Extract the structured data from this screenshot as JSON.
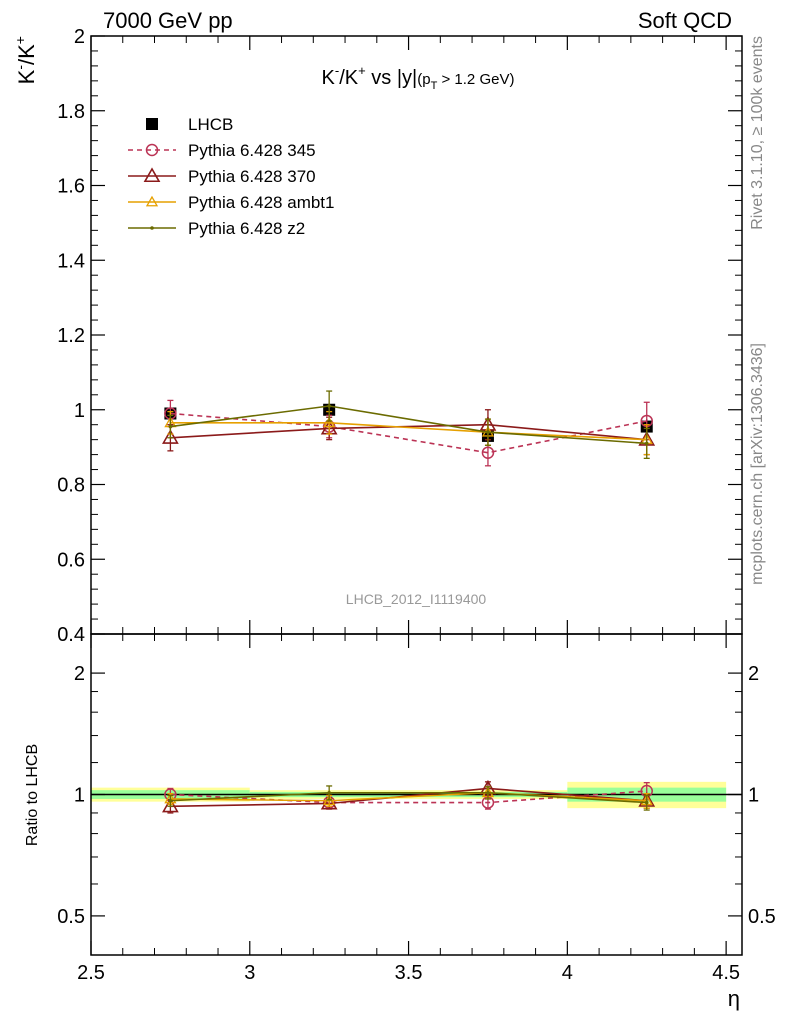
{
  "header": {
    "left": "7000 GeV pp",
    "right": "Soft QCD"
  },
  "side_labels": {
    "rivet": "Rivet 3.1.10, ≥ 100k events",
    "mcplots": "mcplots.cern.ch [arXiv:1306.3436]"
  },
  "watermark": "LHCB_2012_I1119400",
  "colors": {
    "lhcb": "#000000",
    "p345": "#bb3355",
    "p370": "#8b1a1a",
    "ambt1": "#e6a000",
    "z2": "#6b6b00",
    "band_yellow": "#ffff99",
    "band_green": "#99ff99"
  },
  "chart_data": [
    {
      "type": "line",
      "title_parts": {
        "k1": "K",
        "sup1": "-",
        "slash": "/K",
        "sup2": "+",
        "vs": " vs |y|",
        "sub_open": "(p",
        "sub_t": "T",
        "sub_rest": " > 1.2 GeV)"
      },
      "ylabel_parts": {
        "k1": "K",
        "sup1": "-",
        "slash": "/K",
        "sup2": "+"
      },
      "xlim": [
        2.5,
        4.55
      ],
      "ylim": [
        0.4,
        2.0
      ],
      "yticks": [
        0.4,
        0.6,
        0.8,
        1.0,
        1.2,
        1.4,
        1.6,
        1.8,
        2.0
      ],
      "ytick_labels": [
        "0.4",
        "0.6",
        "0.8",
        "1",
        "1.2",
        "1.4",
        "1.6",
        "1.8",
        "2"
      ],
      "x": [
        2.75,
        3.25,
        3.75,
        4.25
      ],
      "x_bins": [
        [
          2.5,
          3.0
        ],
        [
          3.0,
          3.5
        ],
        [
          3.5,
          4.0
        ],
        [
          4.0,
          4.5
        ]
      ],
      "series": [
        {
          "key": "lhcb",
          "name": "LHCB",
          "values": [
            0.99,
            1.0,
            0.93,
            0.955
          ],
          "errors": [
            0.01,
            0.01,
            0.01,
            0.02
          ]
        },
        {
          "key": "p345",
          "name": "Pythia 6.428 345",
          "values": [
            0.99,
            0.955,
            0.885,
            0.97
          ],
          "errors": [
            0.035,
            0.03,
            0.035,
            0.05
          ]
        },
        {
          "key": "p370",
          "name": "Pythia 6.428 370",
          "values": [
            0.925,
            0.95,
            0.96,
            0.92
          ],
          "errors": [
            0.035,
            0.03,
            0.04,
            0.04
          ]
        },
        {
          "key": "ambt1",
          "name": "Pythia 6.428 ambt1",
          "values": [
            0.965,
            0.965,
            0.94,
            0.92
          ],
          "errors": [
            0.03,
            0.03,
            0.035,
            0.04
          ]
        },
        {
          "key": "z2",
          "name": "Pythia 6.428 z2",
          "values": [
            0.955,
            1.01,
            0.94,
            0.91
          ],
          "errors": [
            0.03,
            0.04,
            0.035,
            0.04
          ]
        }
      ]
    },
    {
      "type": "line",
      "ylabel": "Ratio to LHCB",
      "xlabel": "η",
      "xlim": [
        2.5,
        4.55
      ],
      "xticks": [
        2.5,
        3.0,
        3.5,
        4.0,
        4.5
      ],
      "xtick_labels": [
        "2.5",
        "3",
        "3.5",
        "4",
        "4.5"
      ],
      "ylim": [
        0.4,
        2.5
      ],
      "yscale": "log",
      "yticks": [
        0.5,
        1.0,
        2.0
      ],
      "ytick_labels": [
        "0.5",
        "1",
        "2"
      ],
      "x": [
        2.75,
        3.25,
        3.75,
        4.25
      ],
      "bands": [
        {
          "x0": 2.5,
          "x1": 3.0,
          "yellow": [
            0.96,
            1.04
          ],
          "green": [
            0.975,
            1.025
          ]
        },
        {
          "x0": 3.0,
          "x1": 3.5,
          "yellow": [
            0.975,
            1.025
          ],
          "green": [
            0.985,
            1.015
          ]
        },
        {
          "x0": 3.5,
          "x1": 4.0,
          "yellow": [
            0.975,
            1.025
          ],
          "green": [
            0.985,
            1.015
          ]
        },
        {
          "x0": 4.0,
          "x1": 4.5,
          "yellow": [
            0.925,
            1.075
          ],
          "green": [
            0.96,
            1.04
          ]
        }
      ],
      "series": [
        {
          "key": "p345",
          "name": "Pythia 6.428 345",
          "values": [
            1.0,
            0.955,
            0.955,
            1.02
          ],
          "errors": [
            0.035,
            0.03,
            0.035,
            0.05
          ]
        },
        {
          "key": "p370",
          "name": "Pythia 6.428 370",
          "values": [
            0.935,
            0.95,
            1.035,
            0.965
          ],
          "errors": [
            0.035,
            0.03,
            0.04,
            0.04
          ]
        },
        {
          "key": "ambt1",
          "name": "Pythia 6.428 ambt1",
          "values": [
            0.975,
            0.965,
            1.01,
            0.965
          ],
          "errors": [
            0.03,
            0.03,
            0.035,
            0.04
          ]
        },
        {
          "key": "z2",
          "name": "Pythia 6.428 z2",
          "values": [
            0.965,
            1.01,
            1.01,
            0.955
          ],
          "errors": [
            0.03,
            0.04,
            0.035,
            0.04
          ]
        }
      ]
    }
  ]
}
